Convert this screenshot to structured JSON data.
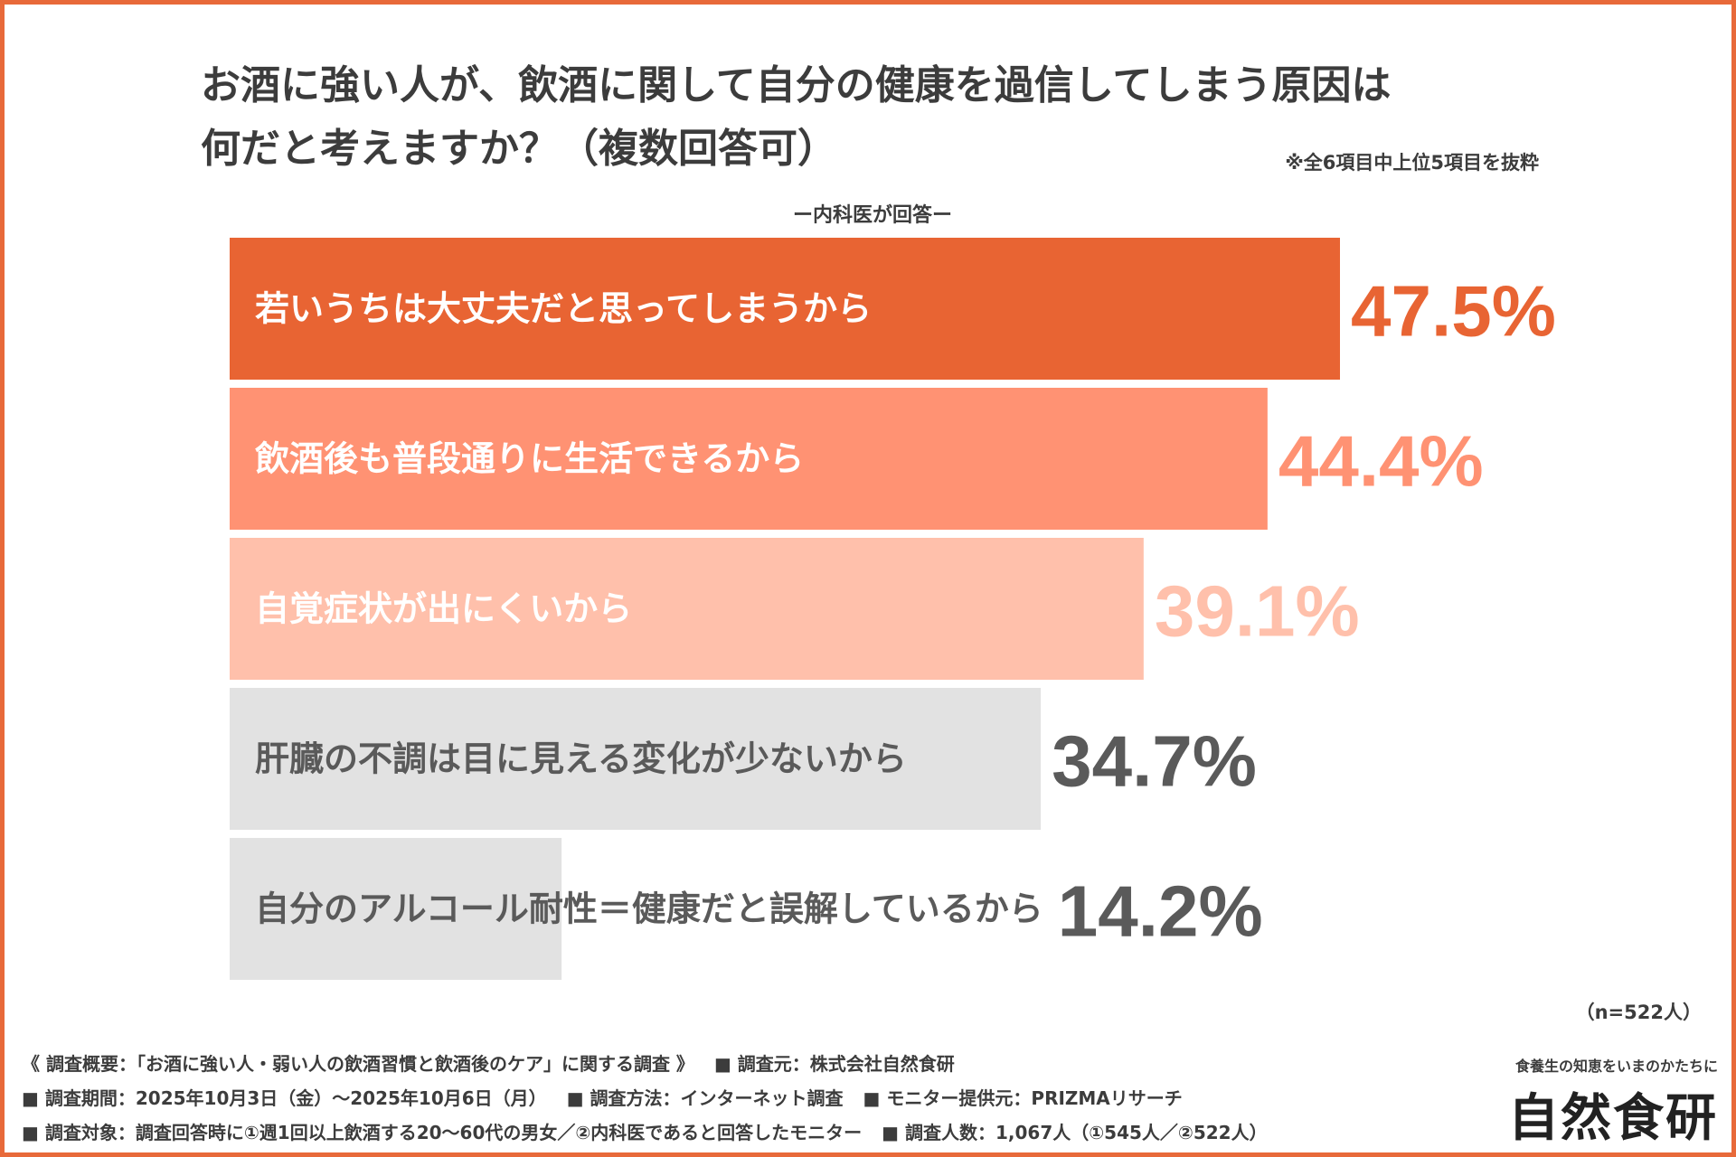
{
  "title": {
    "line1": "お酒に強い人が、飲酒に関して自分の健康を過信してしまう原因は",
    "line2": "何だと考えますか？（複数回答可）"
  },
  "note": "※全6項目中上位5項目を抜粋",
  "respondent_label": "ー内科医が回答ー",
  "sample_size": "（n=522人）",
  "chart_data": {
    "type": "bar",
    "orientation": "horizontal",
    "categories": [
      "若いうちは大丈夫だと思ってしまうから",
      "飲酒後も普段通りに生活できるから",
      "自覚症状が出にくいから",
      "肝臓の不調は目に見える変化が少ないから",
      "自分のアルコール耐性＝健康だと誤解しているから"
    ],
    "values": [
      47.5,
      44.4,
      39.1,
      34.7,
      14.2
    ],
    "value_labels": [
      "47.5%",
      "44.4%",
      "39.1%",
      "34.7%",
      "14.2%"
    ],
    "bar_colors": [
      "#e86433",
      "#ff9273",
      "#ffc0ab",
      "#e2e2e2",
      "#e2e2e2"
    ],
    "label_colors": [
      "#ffffff",
      "#ffffff",
      "#ffffff",
      "#5a5a5a",
      "#5a5a5a"
    ],
    "value_colors": [
      "#e86433",
      "#ff9273",
      "#ffc0ab",
      "#5a5a5a",
      "#5a5a5a"
    ],
    "xlim": [
      0,
      47.5
    ],
    "grid": false
  },
  "footer": {
    "line1a": "《 調査概要：「お酒に強い人・弱い人の飲酒習慣と飲酒後のケア」に関する調査 》",
    "line1b": "■ 調査元：株式会社自然食研",
    "line2a": "■ 調査期間：2025年10月3日（金）〜2025年10月6日（月）",
    "line2b": "■ 調査方法：インターネット調査",
    "line2c": "■ モニター提供元：PRIZMAリサーチ",
    "line3a": "■ 調査対象：調査回答時に①週1回以上飲酒する20〜60代の男女／②内科医であると回答したモニター",
    "line3b": "■ 調査人数：1,067人（①545人／②522人）"
  },
  "brand": {
    "tagline": "食養生の知恵をいまのかたちに",
    "logo": "自然食研"
  }
}
